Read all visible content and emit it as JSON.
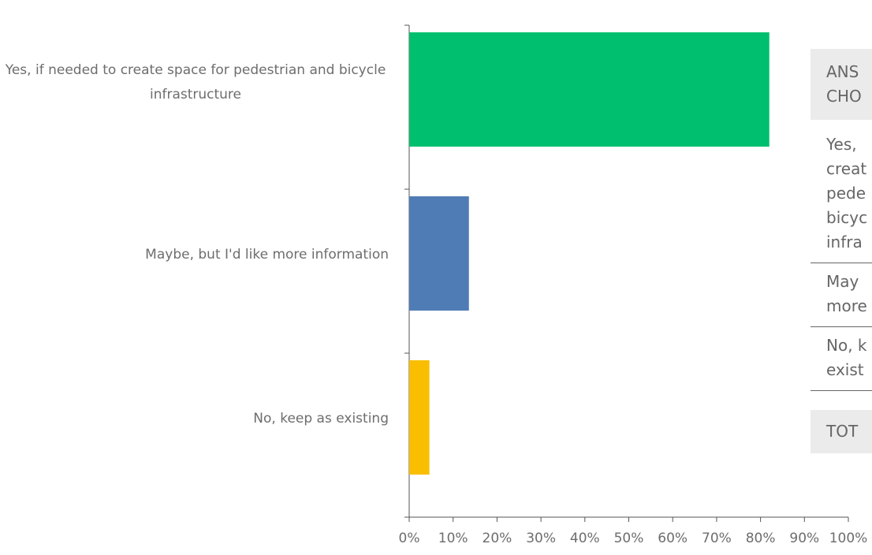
{
  "chart_data": {
    "type": "hbar",
    "categories": [
      "Yes, if needed to create space for pedestrian and bicycle infrastructure",
      "Maybe, but I'd like more information",
      "No, keep as existing"
    ],
    "values": [
      82,
      13.6,
      4.6
    ],
    "colors": [
      "#00bf6f",
      "#507cb6",
      "#f9be00"
    ],
    "xlim": [
      0,
      100
    ],
    "xticks": [
      {
        "value": 0,
        "label": "0%"
      },
      {
        "value": 10,
        "label": "10%"
      },
      {
        "value": 20,
        "label": "20%"
      },
      {
        "value": 30,
        "label": "30%"
      },
      {
        "value": 40,
        "label": "40%"
      },
      {
        "value": 50,
        "label": "50%"
      },
      {
        "value": 60,
        "label": "60%"
      },
      {
        "value": 70,
        "label": "70%"
      },
      {
        "value": 80,
        "label": "80%"
      },
      {
        "value": 90,
        "label": "90%"
      },
      {
        "value": 100,
        "label": "100%"
      }
    ]
  },
  "table": {
    "header": [
      "ANS",
      "CHO"
    ],
    "rows": [
      [
        "Yes,",
        "creat",
        "pede",
        "bicyc",
        "infra"
      ],
      [
        "May",
        "more"
      ],
      [
        "No, k",
        "exist"
      ]
    ],
    "total": [
      "TOT"
    ]
  }
}
